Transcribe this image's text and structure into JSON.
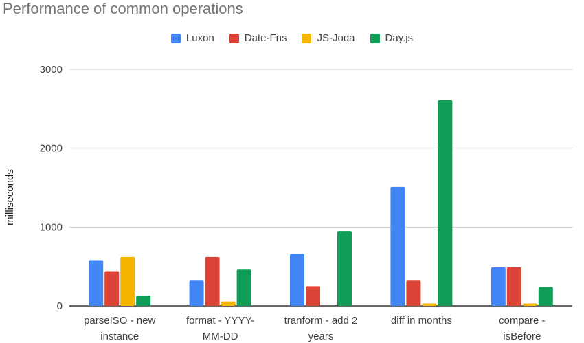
{
  "chart_data": {
    "type": "bar",
    "title": "Performance of common operations",
    "xlabel": "",
    "ylabel": "milliseconds",
    "ylim": [
      0,
      3000
    ],
    "yticks": [
      0,
      1000,
      2000,
      3000
    ],
    "ytick_labels": [
      "0",
      "1000",
      "2000",
      "3000"
    ],
    "grid": true,
    "legend_position": "top",
    "categories": [
      [
        "parseISO - new",
        "instance"
      ],
      [
        "format - YYYY-",
        "MM-DD"
      ],
      [
        "tranform - add 2",
        "years"
      ],
      [
        "diff in months"
      ],
      [
        "compare -",
        "isBefore"
      ]
    ],
    "series": [
      {
        "name": "Luxon",
        "color": "#4285f4",
        "values": [
          580,
          320,
          660,
          1510,
          490
        ]
      },
      {
        "name": "Date-Fns",
        "color": "#db4437",
        "values": [
          440,
          620,
          250,
          320,
          490
        ]
      },
      {
        "name": "JS-Joda",
        "color": "#f4b400",
        "values": [
          620,
          55,
          0,
          30,
          30
        ]
      },
      {
        "name": "Day.js",
        "color": "#0f9d58",
        "values": [
          130,
          460,
          950,
          2610,
          240
        ]
      }
    ]
  }
}
